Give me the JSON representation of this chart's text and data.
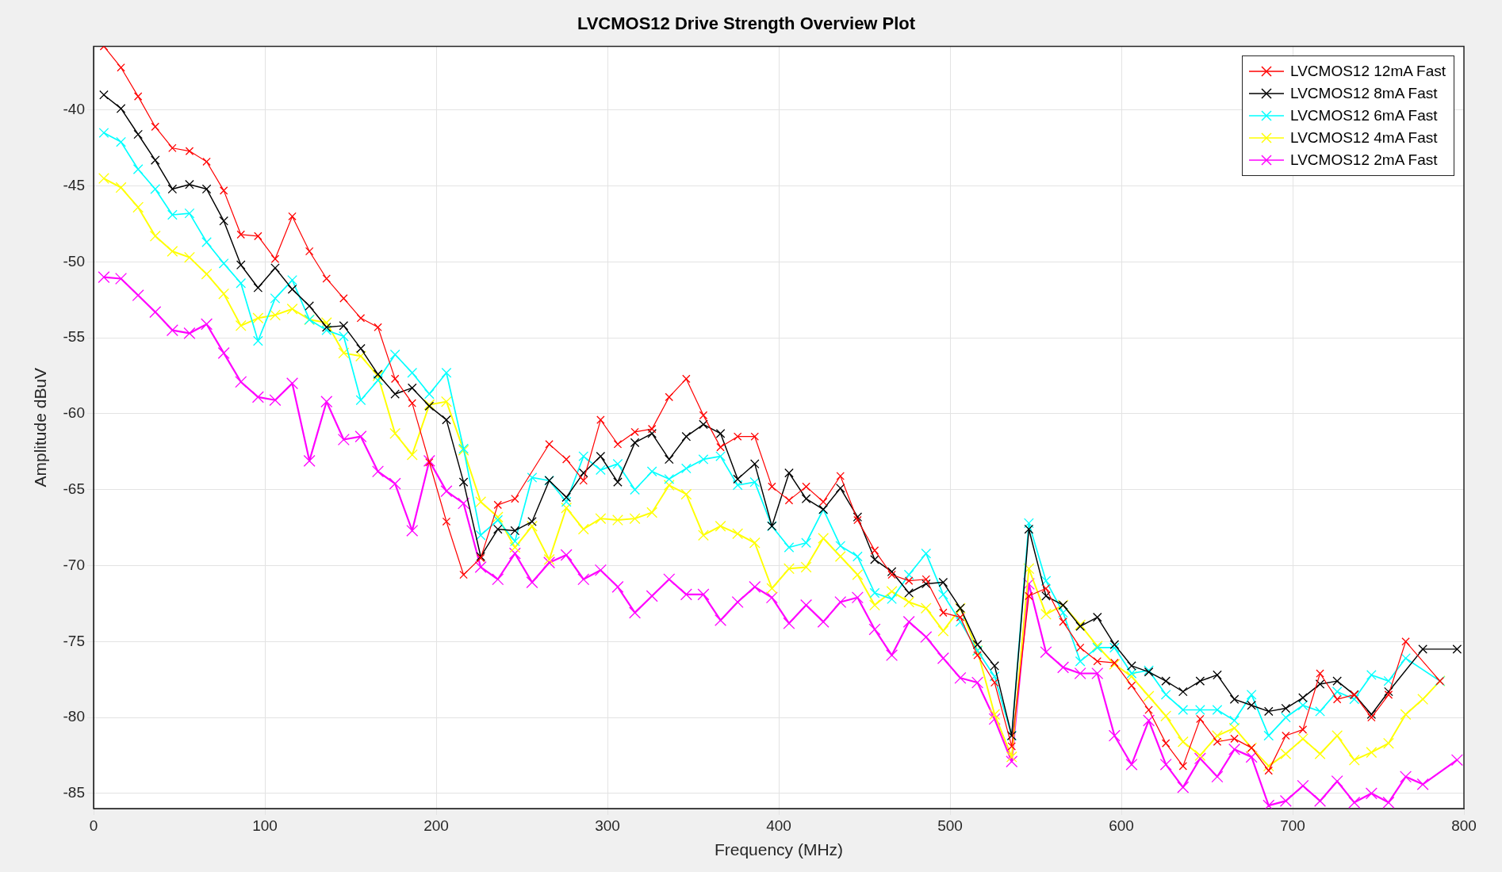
{
  "chart_data": {
    "type": "line",
    "title": "LVCMOS12 Drive Strength Overview Plot",
    "xlabel": "Frequency (MHz)",
    "ylabel": "Amplitude dBuV",
    "x": [
      6,
      16,
      26,
      36,
      46,
      56,
      66,
      76,
      86,
      96,
      106,
      116,
      126,
      136,
      146,
      156,
      166,
      176,
      186,
      196,
      206,
      216,
      226,
      236,
      246,
      256,
      266,
      276,
      286,
      296,
      306,
      316,
      326,
      336,
      346,
      356,
      366,
      376,
      386,
      396,
      406,
      416,
      426,
      436,
      446,
      456,
      466,
      476,
      486,
      496,
      506,
      516,
      526,
      536,
      546,
      556,
      566,
      576,
      586,
      596,
      606,
      616,
      626,
      636,
      646,
      656,
      666,
      676,
      686,
      696,
      706,
      716,
      726,
      736,
      746,
      756,
      766,
      776,
      786,
      796
    ],
    "series": [
      {
        "name": "LVCMOS12 12mA Fast",
        "color": "#ff0000",
        "values": [
          -35.8,
          -37.2,
          -39.1,
          -41.1,
          -42.5,
          -42.7,
          -43.4,
          -45.3,
          -48.2,
          -48.3,
          -49.8,
          -47.0,
          -49.3,
          -51.1,
          -52.4,
          -53.7,
          -54.3,
          -57.7,
          -59.3,
          -63.2,
          -67.1,
          -70.6,
          -69.5,
          -66.0,
          -65.6,
          null,
          -62.0,
          -63.0,
          -64.4,
          -60.4,
          -62.0,
          -61.2,
          -61.0,
          -58.9,
          -57.7,
          -60.1,
          -62.2,
          -61.5,
          -61.5,
          -64.8,
          -65.7,
          -64.8,
          -65.8,
          -64.1,
          -67.0,
          -69.0,
          -70.6,
          -71.0,
          -70.9,
          -73.1,
          -73.4,
          -75.9,
          -77.7,
          -81.9,
          -72.0,
          -71.5,
          -73.7,
          -75.4,
          -76.3,
          -76.4,
          -77.9,
          -79.5,
          -81.7,
          -83.2,
          -80.1,
          -81.6,
          -81.4,
          -82.0,
          -83.5,
          -81.2,
          -80.8,
          -77.1,
          -78.8,
          -78.5,
          -80.0,
          -78.5,
          -75.0,
          null,
          -77.6,
          null
        ]
      },
      {
        "name": "LVCMOS12 8mA Fast",
        "color": "#000000",
        "values": [
          -39.0,
          -39.9,
          -41.6,
          -43.3,
          -45.2,
          -44.9,
          -45.2,
          -47.3,
          -50.2,
          -51.7,
          -50.4,
          -51.8,
          -52.9,
          -54.3,
          -54.2,
          -55.7,
          -57.4,
          -58.7,
          -58.3,
          -59.5,
          -60.4,
          -64.5,
          -69.4,
          -67.6,
          -67.7,
          -67.1,
          -64.4,
          -65.5,
          -63.9,
          -62.8,
          -64.5,
          -61.9,
          -61.3,
          -63.0,
          -61.5,
          -60.7,
          -61.3,
          -64.3,
          -63.3,
          -67.4,
          -63.9,
          -65.6,
          -66.3,
          -64.9,
          -66.8,
          -69.6,
          -70.4,
          -71.8,
          -71.2,
          -71.1,
          -72.8,
          -75.2,
          -76.6,
          -81.2,
          -67.6,
          -72.0,
          -72.6,
          -74.0,
          -73.4,
          -75.2,
          -76.6,
          -77.0,
          -77.6,
          -78.3,
          -77.6,
          -77.2,
          -78.8,
          -79.2,
          -79.6,
          -79.4,
          -78.7,
          -77.8,
          -77.6,
          -78.5,
          -79.8,
          -78.3,
          null,
          -75.5,
          null,
          -75.5
        ]
      },
      {
        "name": "LVCMOS12 6mA Fast",
        "color": "#00ffff",
        "values": [
          -41.5,
          -42.1,
          -43.9,
          -45.2,
          -46.9,
          -46.8,
          -48.7,
          -50.1,
          -51.4,
          -55.2,
          -52.4,
          -51.2,
          -53.8,
          -54.5,
          -54.9,
          -59.1,
          -57.8,
          -56.1,
          -57.3,
          -58.7,
          -57.3,
          -62.3,
          -68.0,
          -67.0,
          -68.4,
          -64.2,
          -64.4,
          -65.8,
          -62.8,
          -63.7,
          -63.3,
          -65.0,
          -63.8,
          -64.3,
          -63.6,
          -63.0,
          -62.8,
          -64.7,
          -64.5,
          -67.4,
          -68.8,
          -68.5,
          -66.3,
          -68.7,
          -69.4,
          -71.8,
          -72.2,
          -70.6,
          -69.2,
          -71.9,
          -73.7,
          -75.6,
          -77.3,
          -81.2,
          -67.2,
          -71.0,
          -73.1,
          -76.3,
          -75.4,
          -75.4,
          -77.1,
          -76.9,
          -78.5,
          -79.5,
          -79.5,
          -79.5,
          -80.2,
          -78.5,
          -81.2,
          -80.0,
          -79.2,
          -79.6,
          -78.3,
          -78.8,
          -77.2,
          -77.6,
          -76.1,
          null,
          -77.6,
          null
        ]
      },
      {
        "name": "LVCMOS12 4mA Fast",
        "color": "#ffff00",
        "values": [
          -44.5,
          -45.1,
          -46.4,
          -48.3,
          -49.3,
          -49.7,
          -50.8,
          -52.1,
          -54.2,
          -53.7,
          -53.5,
          -53.1,
          -53.8,
          -54.0,
          -56.0,
          -56.2,
          -57.5,
          -61.3,
          -62.7,
          -59.4,
          -59.2,
          -62.4,
          -65.8,
          -66.8,
          -68.8,
          -67.4,
          -69.6,
          -66.2,
          -67.6,
          -66.9,
          -67.0,
          -66.9,
          -66.5,
          -64.7,
          -65.3,
          -68.0,
          -67.4,
          -67.9,
          -68.5,
          -71.5,
          -70.2,
          -70.1,
          -68.2,
          -69.4,
          -70.6,
          -72.6,
          -71.7,
          -72.4,
          -72.8,
          -74.3,
          -72.8,
          -75.6,
          -79.8,
          -82.6,
          -70.2,
          -73.2,
          -72.6,
          -73.9,
          -75.3,
          -76.5,
          -77.3,
          -78.6,
          -79.9,
          -81.6,
          -82.5,
          -81.2,
          -80.7,
          -82.0,
          -83.2,
          -82.4,
          -81.4,
          -82.4,
          -81.2,
          -82.8,
          -82.3,
          -81.7,
          -79.8,
          -78.8,
          -77.6,
          null
        ]
      },
      {
        "name": "LVCMOS12 2mA Fast",
        "color": "#ff00ff",
        "values": [
          -51.0,
          -51.1,
          -52.2,
          -53.3,
          -54.5,
          -54.7,
          -54.1,
          -56.0,
          -57.9,
          -58.9,
          -59.1,
          -58.0,
          -63.1,
          -59.2,
          -61.7,
          -61.5,
          -63.8,
          -64.6,
          -67.7,
          -63.1,
          -65.1,
          -65.9,
          -70.1,
          -70.9,
          -69.2,
          -71.1,
          -69.8,
          -69.3,
          -70.9,
          -70.3,
          -71.4,
          -73.1,
          -72.0,
          -70.9,
          -71.9,
          -71.9,
          -73.6,
          -72.4,
          -71.4,
          -72.1,
          -73.8,
          -72.6,
          -73.7,
          -72.4,
          -72.1,
          -74.2,
          -75.9,
          -73.7,
          -74.7,
          -76.1,
          -77.4,
          -77.7,
          -80.1,
          -82.9,
          -71.2,
          -75.7,
          -76.7,
          -77.1,
          -77.1,
          -81.2,
          -83.1,
          -80.2,
          -83.1,
          -84.6,
          -82.7,
          -83.9,
          -82.1,
          -82.6,
          -85.8,
          -85.5,
          -84.5,
          -85.5,
          -84.2,
          -85.6,
          -85.0,
          -85.6,
          -83.9,
          -84.4,
          null,
          -82.8
        ]
      }
    ],
    "xlim": [
      0,
      800
    ],
    "xticks": [
      0,
      100,
      200,
      300,
      400,
      500,
      600,
      700,
      800
    ],
    "ylim": [
      -86,
      -35.8
    ],
    "yticks": [
      -85,
      -80,
      -75,
      -70,
      -65,
      -60,
      -55,
      -50,
      -45,
      -40
    ],
    "grid": true,
    "legend": "top right",
    "marker": "cross",
    "line_style": "solid"
  }
}
